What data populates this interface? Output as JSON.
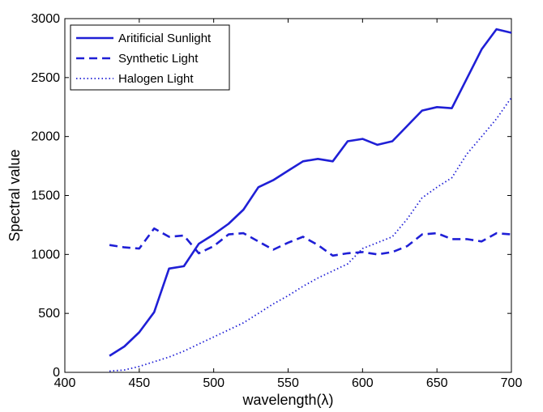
{
  "chart_data": {
    "type": "line",
    "xlabel": "wavelength(λ)",
    "ylabel": "Spectral value",
    "xlim": [
      400,
      700
    ],
    "ylim": [
      0,
      3000
    ],
    "x_ticks": [
      400,
      450,
      500,
      550,
      600,
      650,
      700
    ],
    "y_ticks": [
      0,
      500,
      1000,
      1500,
      2000,
      2500,
      3000
    ],
    "grid": false,
    "legend_position": "top-left",
    "color": "#1f1fd6",
    "series": [
      {
        "name": "Aritificial Sunlight",
        "style": "solid",
        "x": [
          430,
          440,
          450,
          460,
          470,
          480,
          490,
          500,
          510,
          520,
          530,
          540,
          550,
          560,
          570,
          580,
          590,
          600,
          610,
          620,
          630,
          640,
          650,
          660,
          670,
          680,
          690,
          700
        ],
        "values": [
          140,
          220,
          340,
          510,
          880,
          900,
          1090,
          1170,
          1260,
          1380,
          1570,
          1630,
          1710,
          1790,
          1810,
          1790,
          1960,
          1980,
          1930,
          1960,
          2090,
          2220,
          2250,
          2240,
          2490,
          2740,
          2910,
          2880
        ]
      },
      {
        "name": "Synthetic Light",
        "style": "dashed",
        "x": [
          430,
          440,
          450,
          460,
          470,
          480,
          490,
          500,
          510,
          520,
          530,
          540,
          550,
          560,
          570,
          580,
          590,
          600,
          610,
          620,
          630,
          640,
          650,
          660,
          670,
          680,
          690,
          700
        ],
        "values": [
          1080,
          1060,
          1050,
          1220,
          1150,
          1160,
          1010,
          1070,
          1170,
          1180,
          1110,
          1040,
          1100,
          1150,
          1080,
          990,
          1010,
          1020,
          1000,
          1020,
          1070,
          1170,
          1180,
          1130,
          1130,
          1110,
          1180,
          1170
        ]
      },
      {
        "name": "Halogen Light",
        "style": "dotted",
        "x": [
          430,
          440,
          450,
          460,
          470,
          480,
          490,
          500,
          510,
          520,
          530,
          540,
          550,
          560,
          570,
          580,
          590,
          600,
          610,
          620,
          630,
          640,
          650,
          660,
          670,
          680,
          690,
          700
        ],
        "values": [
          10,
          20,
          50,
          90,
          130,
          180,
          240,
          300,
          360,
          420,
          500,
          580,
          650,
          730,
          800,
          860,
          920,
          1050,
          1100,
          1150,
          1300,
          1480,
          1570,
          1650,
          1850,
          2000,
          2150,
          2330
        ]
      }
    ]
  }
}
